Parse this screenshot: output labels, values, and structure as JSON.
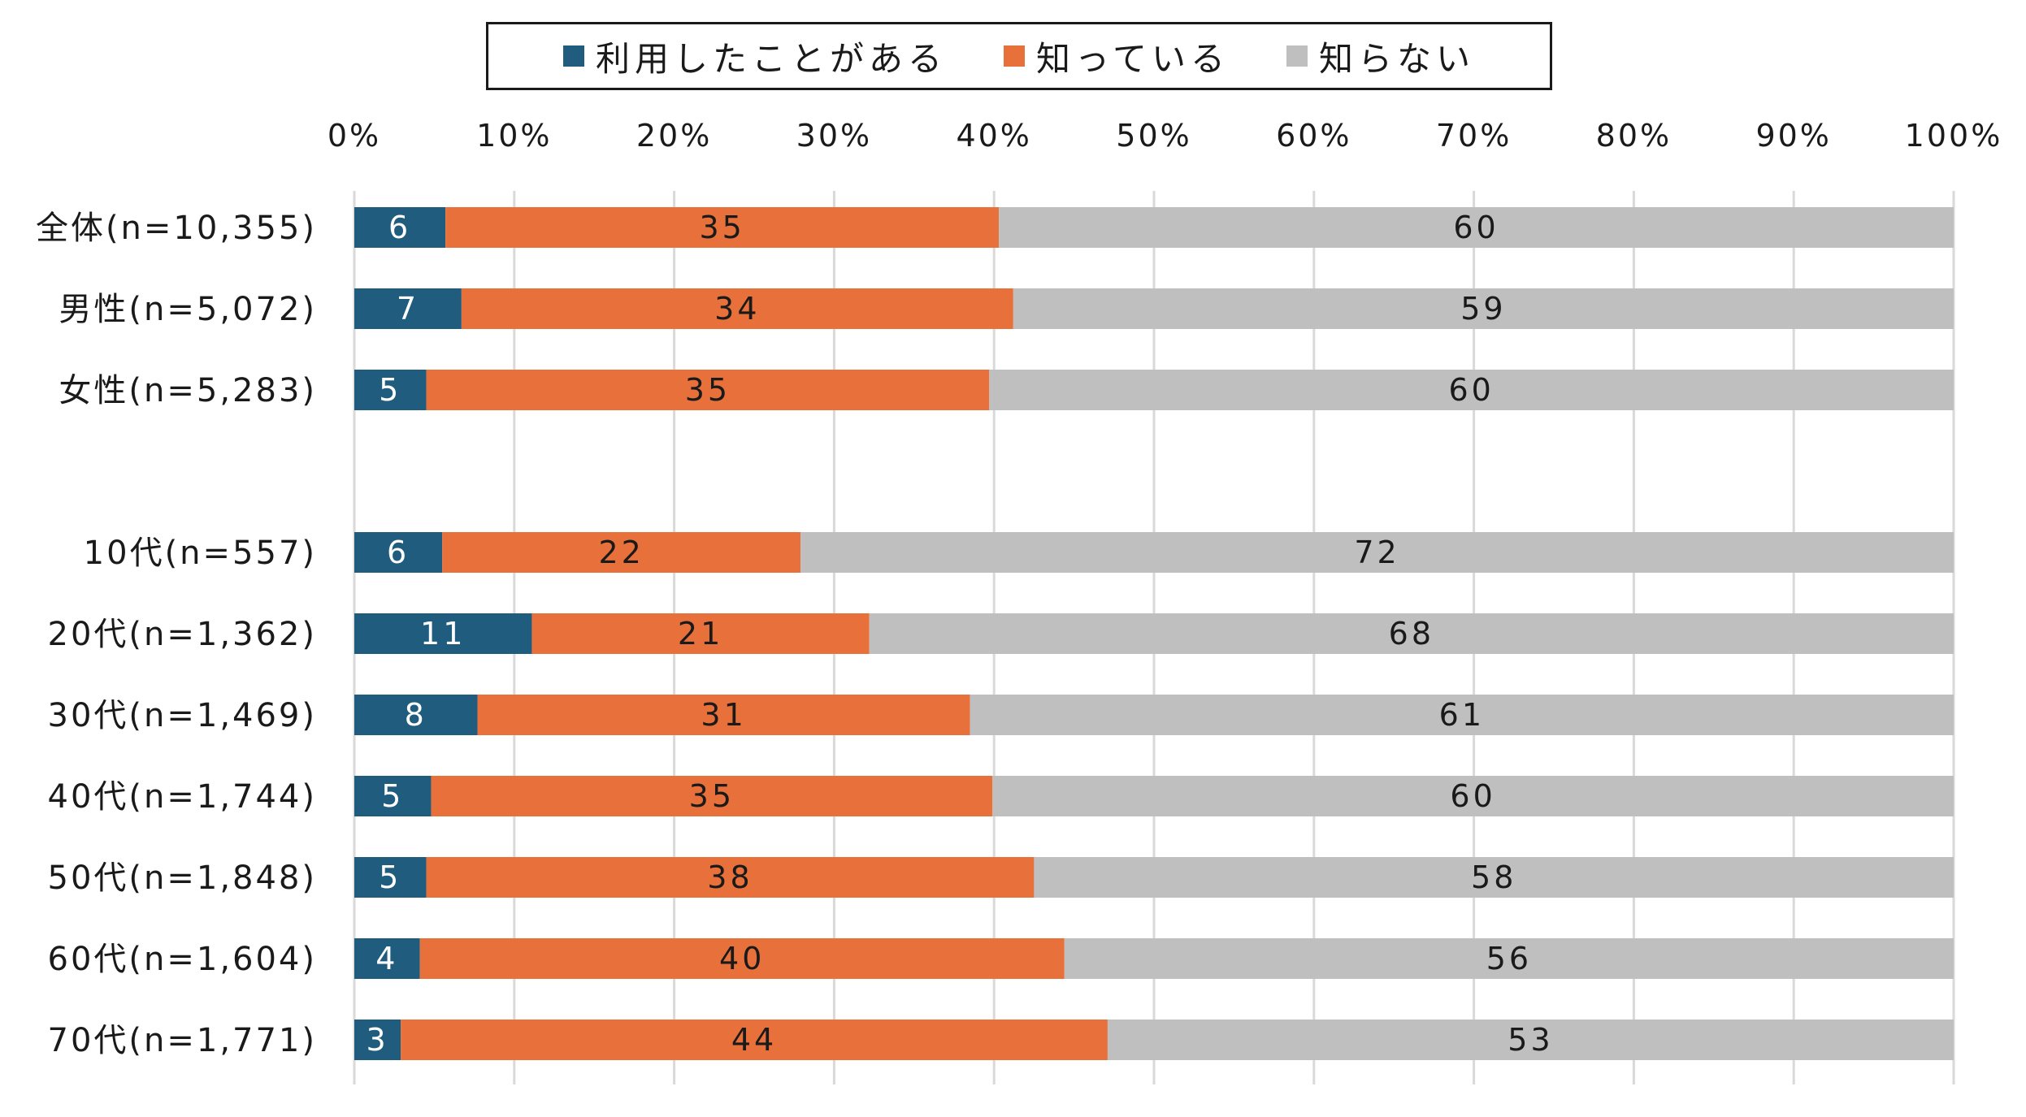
{
  "chart_data": {
    "type": "bar",
    "orientation": "horizontal",
    "stacked": true,
    "legend_position": "top",
    "xlim": [
      0,
      100
    ],
    "x_ticks": [
      "0%",
      "10%",
      "20%",
      "30%",
      "40%",
      "50%",
      "60%",
      "70%",
      "80%",
      "90%",
      "100%"
    ],
    "grid": true,
    "categories": [
      "全体(n=10,355)",
      "男性(n=5,072)",
      "女性(n=5,283)",
      "",
      "10代(n=557)",
      "20代(n=1,362)",
      "30代(n=1,469)",
      "40代(n=1,744)",
      "50代(n=1,848)",
      "60代(n=1,604)",
      "70代(n=1,771)"
    ],
    "series": [
      {
        "name": "利用したことがある",
        "color": "#1F5C7E",
        "label_color": "#ffffff",
        "values": [
          5.7,
          6.7,
          4.5,
          null,
          5.5,
          11.1,
          7.7,
          4.8,
          4.5,
          4.1,
          2.9
        ],
        "labels": [
          "6",
          "7",
          "5",
          "",
          "6",
          "11",
          "8",
          "5",
          "5",
          "4",
          "3"
        ]
      },
      {
        "name": "知っている",
        "color": "#E8703A",
        "label_color": "#1a1a1a",
        "values": [
          34.6,
          34.5,
          35.2,
          null,
          22.4,
          21.1,
          30.8,
          35.1,
          38.0,
          40.3,
          44.2
        ],
        "labels": [
          "35",
          "34",
          "35",
          "",
          "22",
          "21",
          "31",
          "35",
          "38",
          "40",
          "44"
        ]
      },
      {
        "name": "知らない",
        "color": "#BFBFBF",
        "label_color": "#1a1a1a",
        "values": [
          59.7,
          58.8,
          60.3,
          null,
          72.1,
          67.8,
          61.5,
          60.1,
          57.5,
          55.6,
          52.9
        ],
        "labels": [
          "60",
          "59",
          "60",
          "",
          "72",
          "68",
          "61",
          "60",
          "58",
          "56",
          "53"
        ]
      }
    ]
  }
}
